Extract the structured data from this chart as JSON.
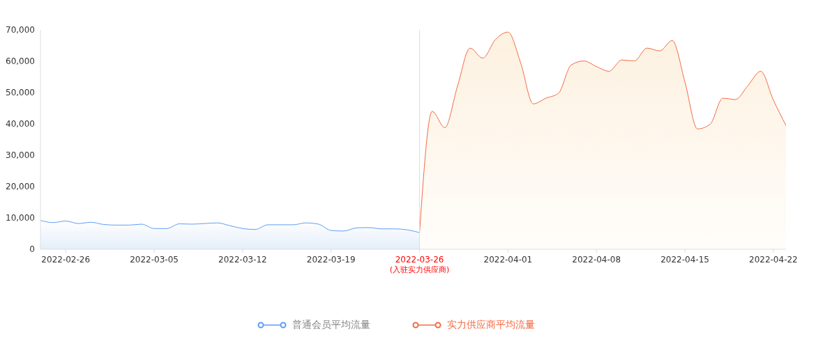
{
  "chart_data": {
    "type": "area",
    "categories": [
      null,
      null,
      "2022-02-26",
      null,
      null,
      null,
      null,
      null,
      null,
      "2022-03-05",
      null,
      null,
      null,
      null,
      null,
      null,
      "2022-03-12",
      null,
      null,
      null,
      null,
      null,
      null,
      "2022-03-19",
      null,
      null,
      null,
      null,
      null,
      null,
      "2022-03-26",
      null,
      null,
      null,
      null,
      null,
      null,
      "2022-04-01",
      null,
      null,
      null,
      null,
      null,
      null,
      "2022-04-08",
      null,
      null,
      null,
      null,
      null,
      null,
      "2022-04-15",
      null,
      null,
      null,
      null,
      null,
      null,
      "2022-04-22",
      null
    ],
    "series": [
      {
        "name": "普通会员平均流量",
        "color": "#5e9ef4",
        "values": [
          9200,
          8500,
          9000,
          8200,
          8600,
          7900,
          7700,
          7700,
          8000,
          6600,
          6600,
          8100,
          8000,
          8200,
          8400,
          7500,
          6600,
          6300,
          7800,
          7800,
          7800,
          8400,
          8000,
          6000,
          5800,
          6800,
          6900,
          6500,
          6500,
          6200,
          5300,
          null,
          null,
          null,
          null,
          null,
          null,
          null,
          null,
          null,
          null,
          null,
          null,
          null,
          null,
          null,
          null,
          null,
          null,
          null,
          null,
          null,
          null,
          null,
          null,
          null,
          null,
          null,
          null,
          null
        ]
      },
      {
        "name": "实力供应商平均流量",
        "color": "#f56a44",
        "values": [
          null,
          null,
          null,
          null,
          null,
          null,
          null,
          null,
          null,
          null,
          null,
          null,
          null,
          null,
          null,
          null,
          null,
          null,
          null,
          null,
          null,
          null,
          null,
          null,
          null,
          null,
          null,
          null,
          null,
          null,
          5300,
          44000,
          38800,
          52000,
          64200,
          61000,
          66900,
          69300,
          59500,
          46400,
          48200,
          49800,
          58800,
          60100,
          58300,
          56800,
          60400,
          60100,
          64200,
          63300,
          66600,
          53400,
          38400,
          39900,
          48200,
          47800,
          52300,
          56800,
          47600,
          39500
        ]
      }
    ],
    "ylim": [
      0,
      70000
    ],
    "yticks": [
      0,
      {
        "value": 10000,
        "label": "10,000"
      },
      {
        "value": 20000,
        "label": "20,000"
      },
      {
        "value": 30000,
        "label": "30,000"
      },
      {
        "value": 40000,
        "label": "40,000"
      },
      {
        "value": 50000,
        "label": "50,000"
      },
      {
        "value": 60000,
        "label": "60,000"
      },
      {
        "value": 70000,
        "label": "70,000"
      }
    ],
    "ref_lines": [
      {
        "axis": "x",
        "value": "2022-03-26",
        "label": "(入驻实力供应商)",
        "color": "#dddddd"
      }
    ],
    "legend": "bottom"
  }
}
